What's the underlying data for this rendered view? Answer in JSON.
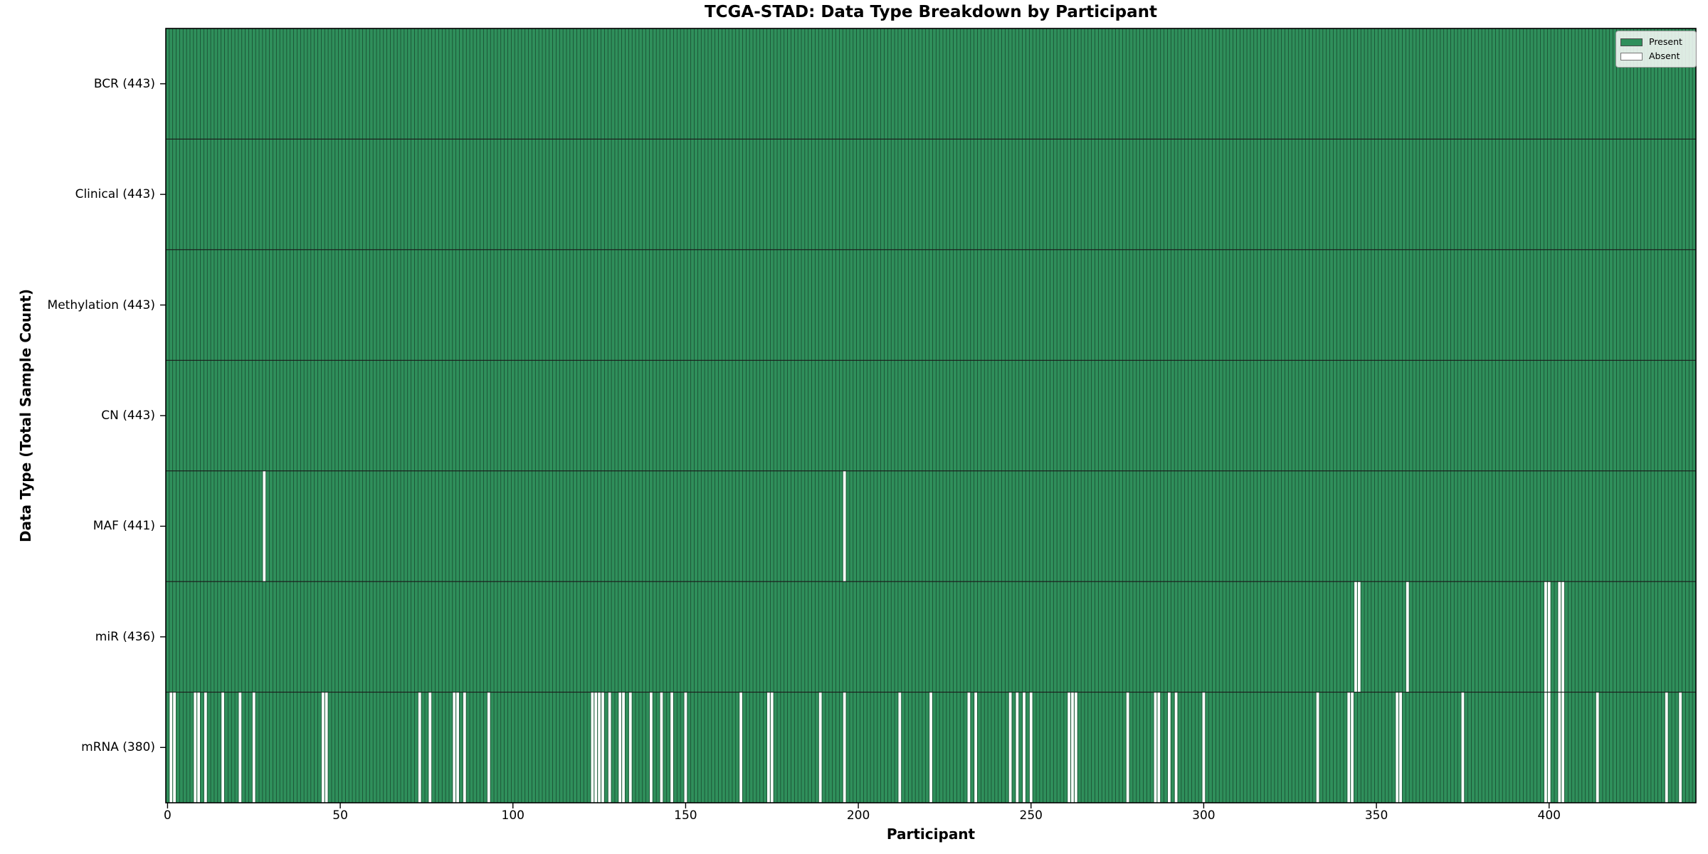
{
  "title": "TCGA-STAD: Data Type Breakdown by Participant",
  "legend": {
    "present_label": "Present",
    "absent_label": "Absent"
  },
  "chart_data": {
    "type": "heatmap",
    "title": "TCGA-STAD: Data Type Breakdown by Participant",
    "xlabel": "Participant",
    "ylabel": "Data Type (Total Sample Count)",
    "n_participants": 443,
    "x_range": [
      -0.5,
      442.5
    ],
    "x_ticks": [
      0,
      50,
      100,
      150,
      200,
      250,
      300,
      350,
      400
    ],
    "grid": false,
    "legend_position": "upper right",
    "legend_entries": [
      "Present",
      "Absent"
    ],
    "colors": {
      "present": "#2f8f5b",
      "absent": "#ffffff",
      "bar_edge": "rgba(0,0,0,0.55)",
      "row_separator": "#1a1a1a",
      "plot_border": "#000000",
      "tick": "#000000"
    },
    "rows": [
      {
        "label": "BCR (443)",
        "name": "BCR",
        "total": 443,
        "absent": []
      },
      {
        "label": "Clinical (443)",
        "name": "Clinical",
        "total": 443,
        "absent": []
      },
      {
        "label": "Methylation (443)",
        "name": "Methylation",
        "total": 443,
        "absent": []
      },
      {
        "label": "CN (443)",
        "name": "CN",
        "total": 443,
        "absent": []
      },
      {
        "label": "MAF (441)",
        "name": "MAF",
        "total": 441,
        "absent": [
          28,
          196
        ]
      },
      {
        "label": "miR (436)",
        "name": "miR",
        "total": 436,
        "absent": [
          344,
          345,
          359,
          399,
          400,
          403,
          404
        ]
      },
      {
        "label": "mRNA (380)",
        "name": "mRNA",
        "total": 380,
        "absent": [
          1,
          2,
          8,
          9,
          11,
          16,
          21,
          25,
          45,
          46,
          73,
          76,
          83,
          84,
          86,
          93,
          123,
          124,
          125,
          126,
          128,
          131,
          132,
          134,
          140,
          143,
          146,
          150,
          166,
          174,
          175,
          189,
          196,
          212,
          221,
          232,
          234,
          244,
          246,
          248,
          250,
          261,
          262,
          263,
          278,
          286,
          287,
          290,
          292,
          300,
          333,
          342,
          343,
          356,
          357,
          375,
          399,
          400,
          403,
          404,
          414,
          434,
          438
        ]
      }
    ]
  }
}
